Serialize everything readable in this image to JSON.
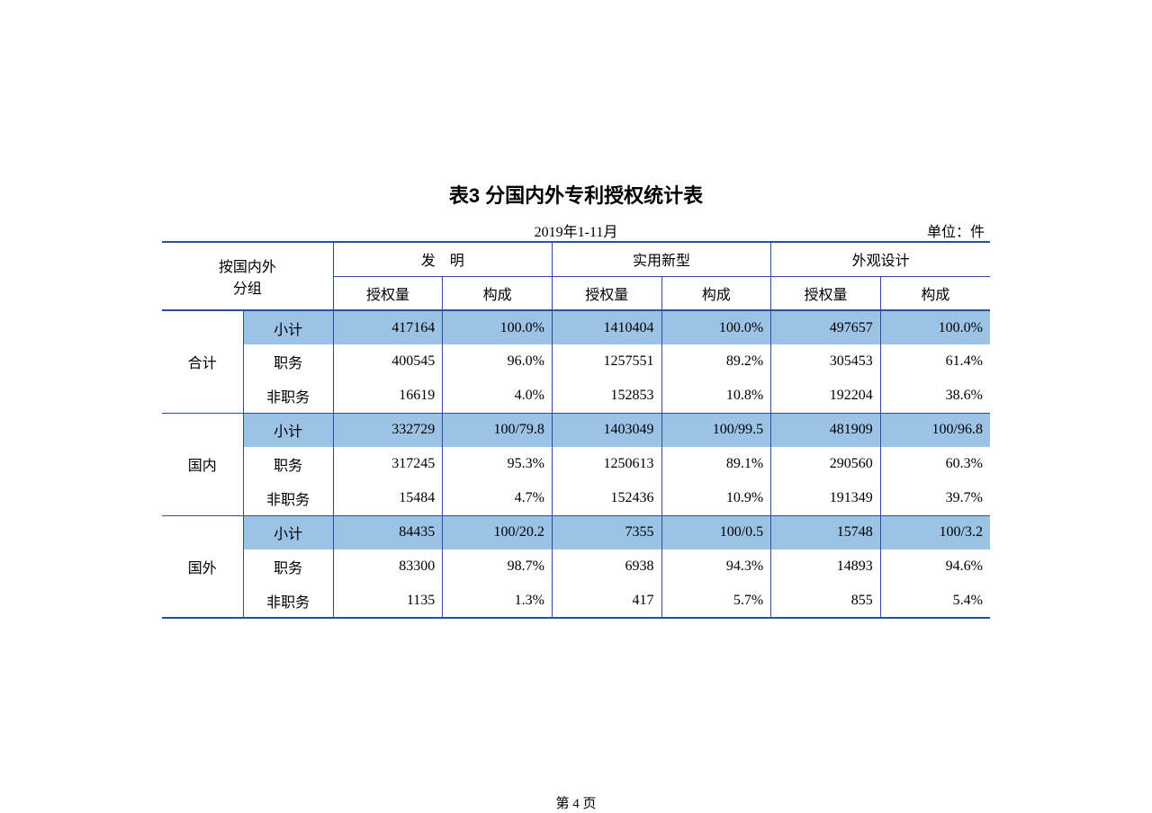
{
  "title": "表3  分国内外专利授权统计表",
  "period": "2019年1-11月",
  "unit": "单位：件",
  "footer": "第 4 页",
  "colors": {
    "border": "#2a4f9e",
    "highlight_bg": "#9cc3e6",
    "text": "#000000",
    "page_bg": "#ffffff"
  },
  "table": {
    "row_label_header1": "按国内外",
    "row_label_header2": "分组",
    "col_groups": [
      "发　明",
      "实用新型",
      "外观设计"
    ],
    "sub_headers": [
      "授权量",
      "构成"
    ],
    "sections": [
      {
        "label": "合计",
        "rows": [
          {
            "sub": "小计",
            "hl": true,
            "cells": [
              "417164",
              "100.0%",
              "1410404",
              "100.0%",
              "497657",
              "100.0%"
            ]
          },
          {
            "sub": "职务",
            "hl": false,
            "cells": [
              "400545",
              "96.0%",
              "1257551",
              "89.2%",
              "305453",
              "61.4%"
            ]
          },
          {
            "sub": "非职务",
            "hl": false,
            "cells": [
              "16619",
              "4.0%",
              "152853",
              "10.8%",
              "192204",
              "38.6%"
            ]
          }
        ]
      },
      {
        "label": "国内",
        "rows": [
          {
            "sub": "小计",
            "hl": true,
            "cells": [
              "332729",
              "100/79.8",
              "1403049",
              "100/99.5",
              "481909",
              "100/96.8"
            ]
          },
          {
            "sub": "职务",
            "hl": false,
            "cells": [
              "317245",
              "95.3%",
              "1250613",
              "89.1%",
              "290560",
              "60.3%"
            ]
          },
          {
            "sub": "非职务",
            "hl": false,
            "cells": [
              "15484",
              "4.7%",
              "152436",
              "10.9%",
              "191349",
              "39.7%"
            ]
          }
        ]
      },
      {
        "label": "国外",
        "rows": [
          {
            "sub": "小计",
            "hl": true,
            "cells": [
              "84435",
              "100/20.2",
              "7355",
              "100/0.5",
              "15748",
              "100/3.2"
            ]
          },
          {
            "sub": "职务",
            "hl": false,
            "cells": [
              "83300",
              "98.7%",
              "6938",
              "94.3%",
              "14893",
              "94.6%"
            ]
          },
          {
            "sub": "非职务",
            "hl": false,
            "cells": [
              "1135",
              "1.3%",
              "417",
              "5.7%",
              "855",
              "5.4%"
            ]
          }
        ]
      }
    ]
  }
}
